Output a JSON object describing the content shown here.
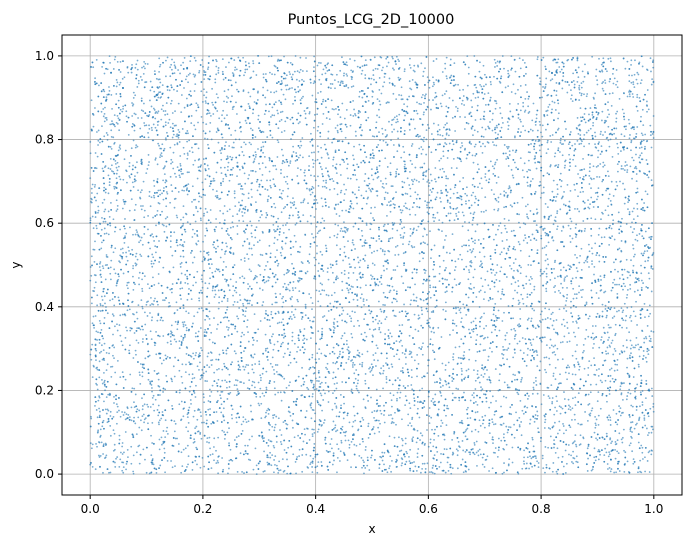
{
  "chart_data": {
    "type": "scatter",
    "title": "Puntos_LCG_2D_10000",
    "xlabel": "x",
    "ylabel": "y",
    "xlim": [
      -0.05,
      1.05
    ],
    "ylim": [
      -0.05,
      1.05
    ],
    "xticks": [
      0.0,
      0.2,
      0.4,
      0.6,
      0.8,
      1.0
    ],
    "yticks": [
      0.0,
      0.2,
      0.4,
      0.6,
      0.8,
      1.0
    ],
    "xtick_labels": [
      "0.0",
      "0.2",
      "0.4",
      "0.6",
      "0.8",
      "1.0"
    ],
    "ytick_labels": [
      "0.0",
      "0.2",
      "0.4",
      "0.6",
      "0.8",
      "1.0"
    ],
    "grid": true,
    "point_count": 10000,
    "x_range": [
      0.0,
      1.0
    ],
    "y_range": [
      0.0,
      1.0
    ],
    "point_color": "#1f77b4",
    "point_alpha": 0.6
  }
}
